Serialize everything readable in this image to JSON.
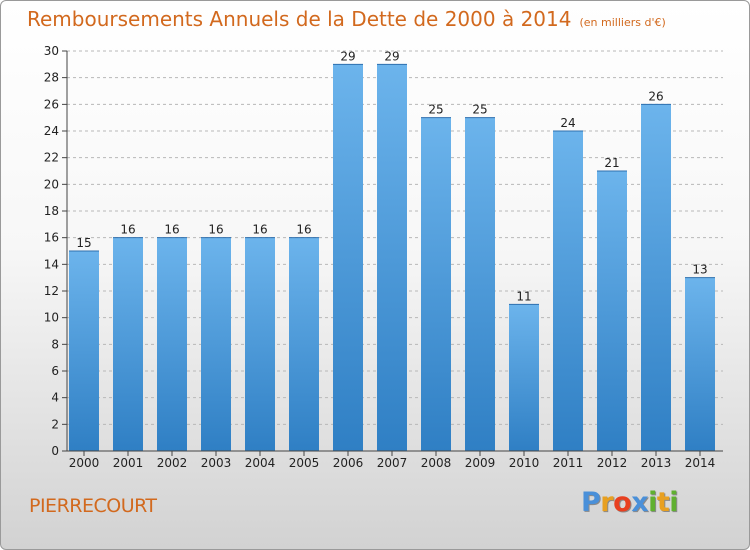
{
  "colors": {
    "title": "#d2691e",
    "bar_light": "#6cb4ec",
    "bar_dark": "#2f7fc4",
    "axis": "#444444",
    "grid": "#b8b8b8"
  },
  "chart_data": {
    "type": "bar",
    "title": "Remboursements Annuels de la Dette de 2000 à 2014",
    "subtitle": "(en milliers d'€)",
    "xlabel": "",
    "ylabel": "",
    "categories": [
      "2000",
      "2001",
      "2002",
      "2003",
      "2004",
      "2005",
      "2006",
      "2007",
      "2008",
      "2009",
      "2010",
      "2011",
      "2012",
      "2013",
      "2014"
    ],
    "values": [
      15,
      16,
      16,
      16,
      16,
      16,
      29,
      29,
      25,
      25,
      11,
      24,
      21,
      26,
      13
    ],
    "ylim": [
      0,
      30
    ],
    "yticks": [
      0,
      2,
      4,
      6,
      8,
      10,
      12,
      14,
      16,
      18,
      20,
      22,
      24,
      26,
      28,
      30
    ],
    "grid": true
  },
  "footer": {
    "commune": "PIERRECOURT",
    "logo": [
      {
        "char": "P",
        "color": "#4a90d9"
      },
      {
        "char": "r",
        "color": "#e8a020"
      },
      {
        "char": "o",
        "color": "#e84020"
      },
      {
        "char": "x",
        "color": "#4a90d9"
      },
      {
        "char": "i",
        "color": "#60b030"
      },
      {
        "char": "t",
        "color": "#e8a020"
      },
      {
        "char": "i",
        "color": "#60b030"
      }
    ]
  }
}
